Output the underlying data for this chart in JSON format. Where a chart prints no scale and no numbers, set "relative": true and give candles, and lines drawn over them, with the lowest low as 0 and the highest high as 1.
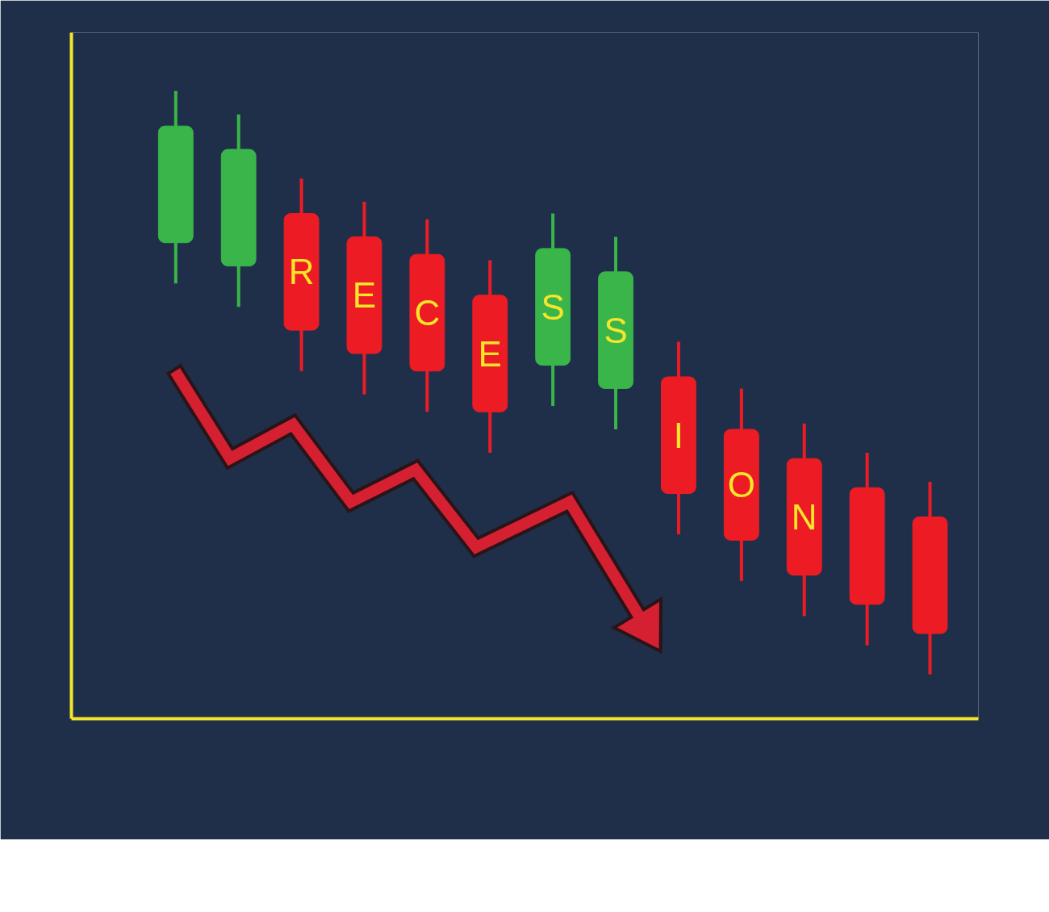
{
  "chart_data": {
    "type": "candlestick",
    "relative": true,
    "categories": [
      null,
      null,
      null,
      null,
      null,
      null,
      null,
      null,
      null,
      null,
      null,
      null,
      null
    ],
    "ohlc": [
      [
        0.74,
        1.0,
        0.67,
        0.94
      ],
      [
        0.7,
        0.96,
        0.63,
        0.9
      ],
      [
        0.79,
        0.85,
        0.52,
        0.59
      ],
      [
        0.75,
        0.81,
        0.48,
        0.55
      ],
      [
        0.72,
        0.78,
        0.45,
        0.52
      ],
      [
        0.65,
        0.71,
        0.38,
        0.45
      ],
      [
        0.53,
        0.79,
        0.46,
        0.73
      ],
      [
        0.49,
        0.75,
        0.42,
        0.69
      ],
      [
        0.51,
        0.57,
        0.24,
        0.31
      ],
      [
        0.42,
        0.49,
        0.16,
        0.23
      ],
      [
        0.37,
        0.43,
        0.1,
        0.17
      ],
      [
        0.32,
        0.38,
        0.05,
        0.12
      ],
      [
        0.27,
        0.33,
        0.0,
        0.07
      ]
    ],
    "colors": [
      "#3ab54a",
      "#3ab54a",
      "#ed1c24",
      "#ed1c24",
      "#ed1c24",
      "#ed1c24",
      "#3ab54a",
      "#3ab54a",
      "#ed1c24",
      "#ed1c24",
      "#ed1c24",
      "#ed1c24",
      "#ed1c24"
    ],
    "value_labels": [
      null,
      null,
      "R",
      "E",
      "C",
      "E",
      "S",
      "S",
      "I",
      "O",
      "N",
      null,
      null
    ]
  }
}
